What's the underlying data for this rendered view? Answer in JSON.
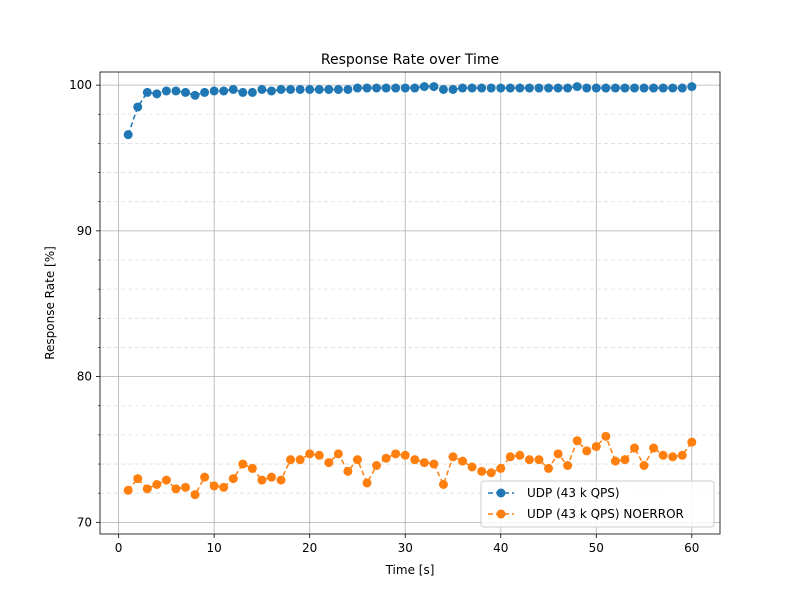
{
  "chart_data": {
    "type": "line",
    "title": "Response Rate over Time",
    "xlabel": "Time [s]",
    "ylabel": "Response Rate [%]",
    "xlim": [
      -1.95,
      62.95
    ],
    "ylim": [
      69.2,
      100.9
    ],
    "x_ticks": [
      0,
      10,
      20,
      30,
      40,
      50,
      60
    ],
    "x_tick_labels": [
      "0",
      "10",
      "20",
      "30",
      "40",
      "50",
      "60"
    ],
    "y_ticks": [
      70,
      80,
      90,
      100
    ],
    "y_tick_labels": [
      "70",
      "80",
      "90",
      "100"
    ],
    "y_minor_ticks": [
      72,
      74,
      76,
      78,
      82,
      84,
      86,
      88,
      92,
      94,
      96,
      98
    ],
    "grid": true,
    "legend": "lower-right",
    "x": [
      1,
      2,
      3,
      4,
      5,
      6,
      7,
      8,
      9,
      10,
      11,
      12,
      13,
      14,
      15,
      16,
      17,
      18,
      19,
      20,
      21,
      22,
      23,
      24,
      25,
      26,
      27,
      28,
      29,
      30,
      31,
      32,
      33,
      34,
      35,
      36,
      37,
      38,
      39,
      40,
      41,
      42,
      43,
      44,
      45,
      46,
      47,
      48,
      49,
      50,
      51,
      52,
      53,
      54,
      55,
      56,
      57,
      58,
      59,
      60
    ],
    "series": [
      {
        "name": "UDP (43 k QPS)",
        "color": "#1f77b4",
        "values": [
          96.6,
          98.5,
          99.5,
          99.4,
          99.6,
          99.6,
          99.5,
          99.3,
          99.5,
          99.6,
          99.6,
          99.7,
          99.5,
          99.5,
          99.7,
          99.6,
          99.7,
          99.7,
          99.7,
          99.7,
          99.7,
          99.7,
          99.7,
          99.7,
          99.8,
          99.8,
          99.8,
          99.8,
          99.8,
          99.8,
          99.8,
          99.9,
          99.9,
          99.7,
          99.7,
          99.8,
          99.8,
          99.8,
          99.8,
          99.8,
          99.8,
          99.8,
          99.8,
          99.8,
          99.8,
          99.8,
          99.8,
          99.9,
          99.8,
          99.8,
          99.8,
          99.8,
          99.8,
          99.8,
          99.8,
          99.8,
          99.8,
          99.8,
          99.8,
          99.9
        ]
      },
      {
        "name": "UDP (43 k QPS) NOERROR",
        "color": "#ff7f0e",
        "values": [
          72.2,
          73.0,
          72.3,
          72.6,
          72.9,
          72.3,
          72.4,
          71.9,
          73.1,
          72.5,
          72.4,
          73.0,
          74.0,
          73.7,
          72.9,
          73.1,
          72.9,
          74.3,
          74.3,
          74.7,
          74.6,
          74.1,
          74.7,
          73.5,
          74.3,
          72.7,
          73.9,
          74.4,
          74.7,
          74.6,
          74.3,
          74.1,
          74.0,
          72.6,
          74.5,
          74.2,
          73.8,
          73.5,
          73.4,
          73.7,
          74.5,
          74.6,
          74.3,
          74.3,
          73.7,
          74.7,
          73.9,
          75.6,
          74.9,
          75.2,
          75.9,
          74.2,
          74.3,
          75.1,
          73.9,
          75.1,
          74.6,
          74.5,
          74.6,
          75.5
        ]
      }
    ]
  }
}
